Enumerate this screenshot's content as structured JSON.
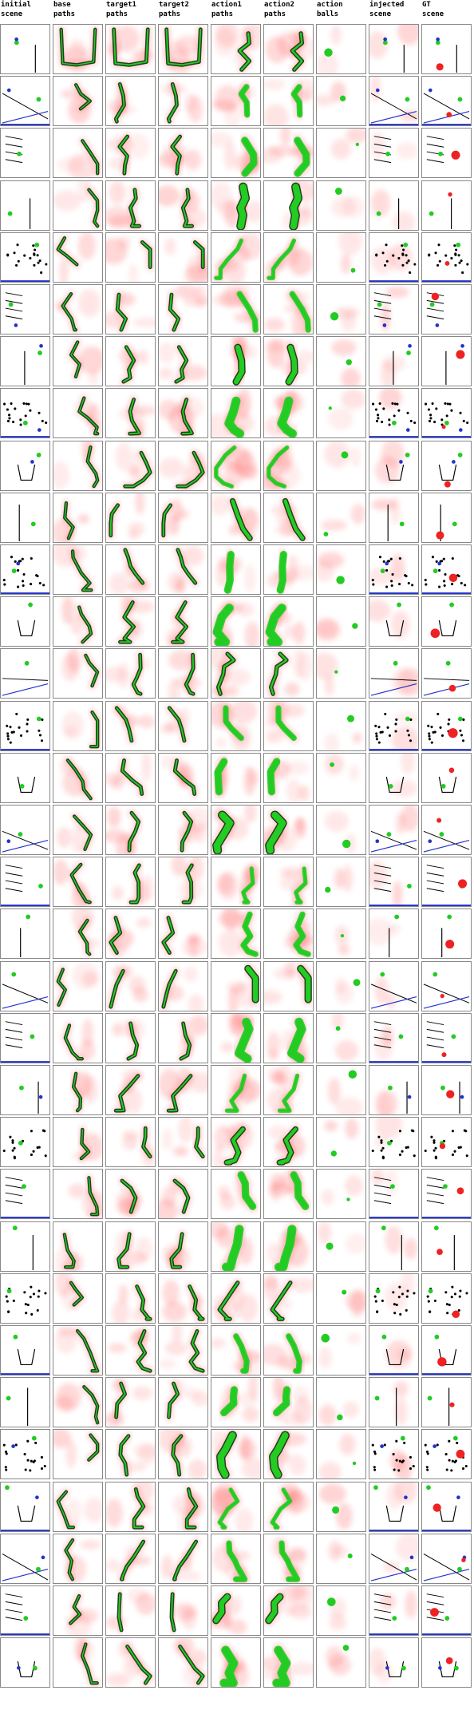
{
  "columns": [
    {
      "key": "initial",
      "line1": "initial",
      "line2": "scene"
    },
    {
      "key": "base",
      "line1": "base",
      "line2": "paths"
    },
    {
      "key": "target1",
      "line1": "target1",
      "line2": "paths"
    },
    {
      "key": "target2",
      "line1": "target2",
      "line2": "paths"
    },
    {
      "key": "action1",
      "line1": "action1",
      "line2": "paths"
    },
    {
      "key": "action2",
      "line1": "action2",
      "line2": "paths"
    },
    {
      "key": "balls",
      "line1": "action",
      "line2": "balls"
    },
    {
      "key": "injected",
      "line1": "injected",
      "line2": "scene"
    },
    {
      "key": "gt",
      "line1": "GT",
      "line2": "scene"
    }
  ],
  "row_count": 32,
  "colors": {
    "path_green": "#22cc22",
    "path_dark": "#0a2a0a",
    "heat_red": "#ff4444",
    "scene_blue": "#2233cc",
    "scene_red": "#ee2222",
    "scene_black": "#000000",
    "border": "#888888"
  }
}
